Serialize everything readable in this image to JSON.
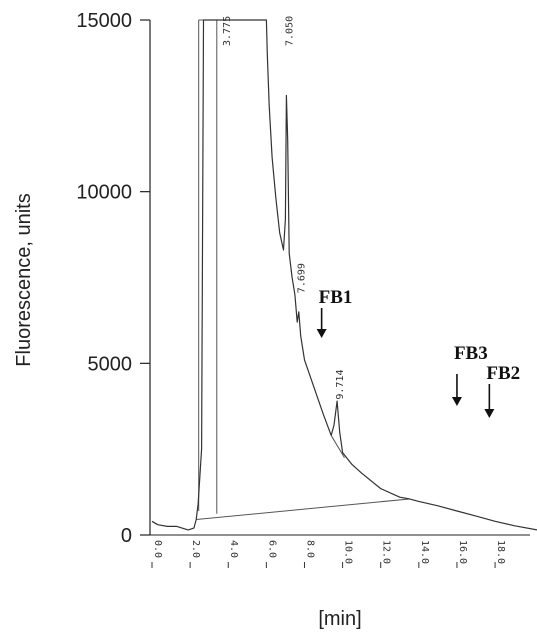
{
  "chart_data": {
    "type": "line",
    "title": "",
    "xlabel": "[min]",
    "ylabel": "Fluorescence, units",
    "xlim": [
      0,
      20.2
    ],
    "ylim": [
      0,
      15000
    ],
    "y_ticks": [
      0,
      5000,
      10000,
      15000
    ],
    "y_tick_labels": [
      "0",
      "5000",
      "10000",
      "15000"
    ],
    "x_ticks": [
      0,
      2,
      4,
      6,
      8,
      10,
      12,
      14,
      16,
      18
    ],
    "x_tick_labels": [
      "0.0",
      "2.0",
      "4.0",
      "6.0",
      "8.0",
      "10.0",
      "12.0",
      "14.0",
      "16.0",
      "18.0"
    ],
    "grid": false,
    "series": [
      {
        "color": "#333333",
        "x": [
          0.0,
          0.3,
          0.8,
          1.3,
          1.9,
          2.2,
          2.32,
          2.42,
          2.6,
          2.7,
          3.0,
          3.5,
          4.0,
          5.0,
          6.0,
          6.05,
          6.15,
          6.3,
          6.5,
          6.7,
          6.9,
          7.0,
          7.05,
          7.12,
          7.2,
          7.35,
          7.5,
          7.62,
          7.7,
          7.8,
          8.0,
          8.5,
          9.0,
          9.4,
          9.55,
          9.714,
          9.85,
          10.0,
          10.5,
          11.0,
          12.0,
          13.0,
          13.5,
          14.0,
          15.0,
          16.0,
          17.0,
          18.0,
          19.0,
          20.2
        ],
        "y": [
          400,
          300,
          250,
          250,
          150,
          200,
          450,
          900,
          2500,
          15000,
          15000,
          15000,
          15000,
          15000,
          15000,
          14000,
          12500,
          11000,
          9800,
          8800,
          8300,
          9200,
          12800,
          11500,
          8200,
          7500,
          7000,
          6200,
          6500,
          5800,
          5100,
          4300,
          3500,
          2900,
          3200,
          3900,
          3000,
          2400,
          2050,
          1800,
          1350,
          1100,
          1050,
          980,
          850,
          700,
          550,
          400,
          270,
          150
        ]
      }
    ],
    "peak_labels": [
      {
        "x": 3.775,
        "label": "3.775"
      },
      {
        "x": 7.05,
        "label": "7.050"
      },
      {
        "x": 7.699,
        "label": "7.699"
      },
      {
        "x": 9.714,
        "label": "9.714"
      }
    ],
    "annotations": [
      {
        "x": 8.9,
        "label": "FB1"
      },
      {
        "x": 16.0,
        "label": "FB3"
      },
      {
        "x": 17.7,
        "label": "FB2"
      }
    ]
  }
}
